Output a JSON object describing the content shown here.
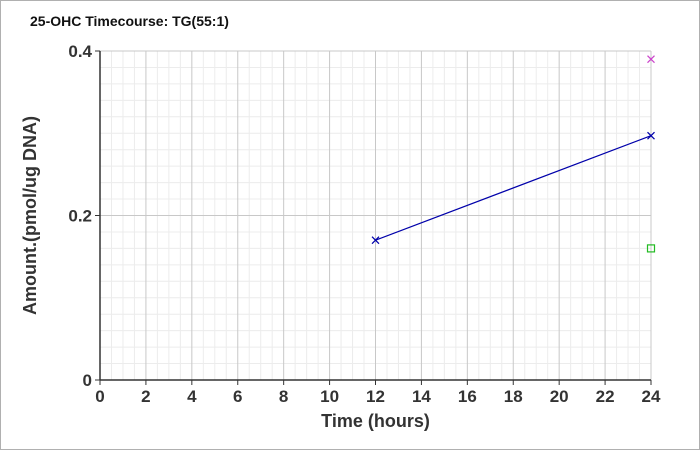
{
  "chart_data": {
    "type": "scatter",
    "title": "25-OHC Timecourse: TG(55:1)",
    "xlabel": "Time (hours)",
    "ylabel": "Amount.(pmol/ug DNA)",
    "xlim": [
      0,
      24
    ],
    "ylim": [
      0,
      0.4
    ],
    "x_ticks": [
      0,
      2,
      4,
      6,
      8,
      10,
      12,
      14,
      16,
      18,
      20,
      22,
      24
    ],
    "y_ticks": [
      0,
      0.2,
      0.4
    ],
    "y_tick_labels": [
      "0",
      "0.2",
      "0.4"
    ],
    "grid": true,
    "series": [
      {
        "marker": "x",
        "color": "#0000aa",
        "line": true,
        "points": [
          {
            "x": 12,
            "y": 0.17
          },
          {
            "x": 24,
            "y": 0.297
          }
        ]
      },
      {
        "marker": "x",
        "color": "#cc44cc",
        "line": false,
        "points": [
          {
            "x": 24,
            "y": 0.39
          }
        ]
      },
      {
        "marker": "square",
        "color": "#22bb22",
        "line": false,
        "points": [
          {
            "x": 24,
            "y": 0.16
          }
        ]
      }
    ]
  }
}
